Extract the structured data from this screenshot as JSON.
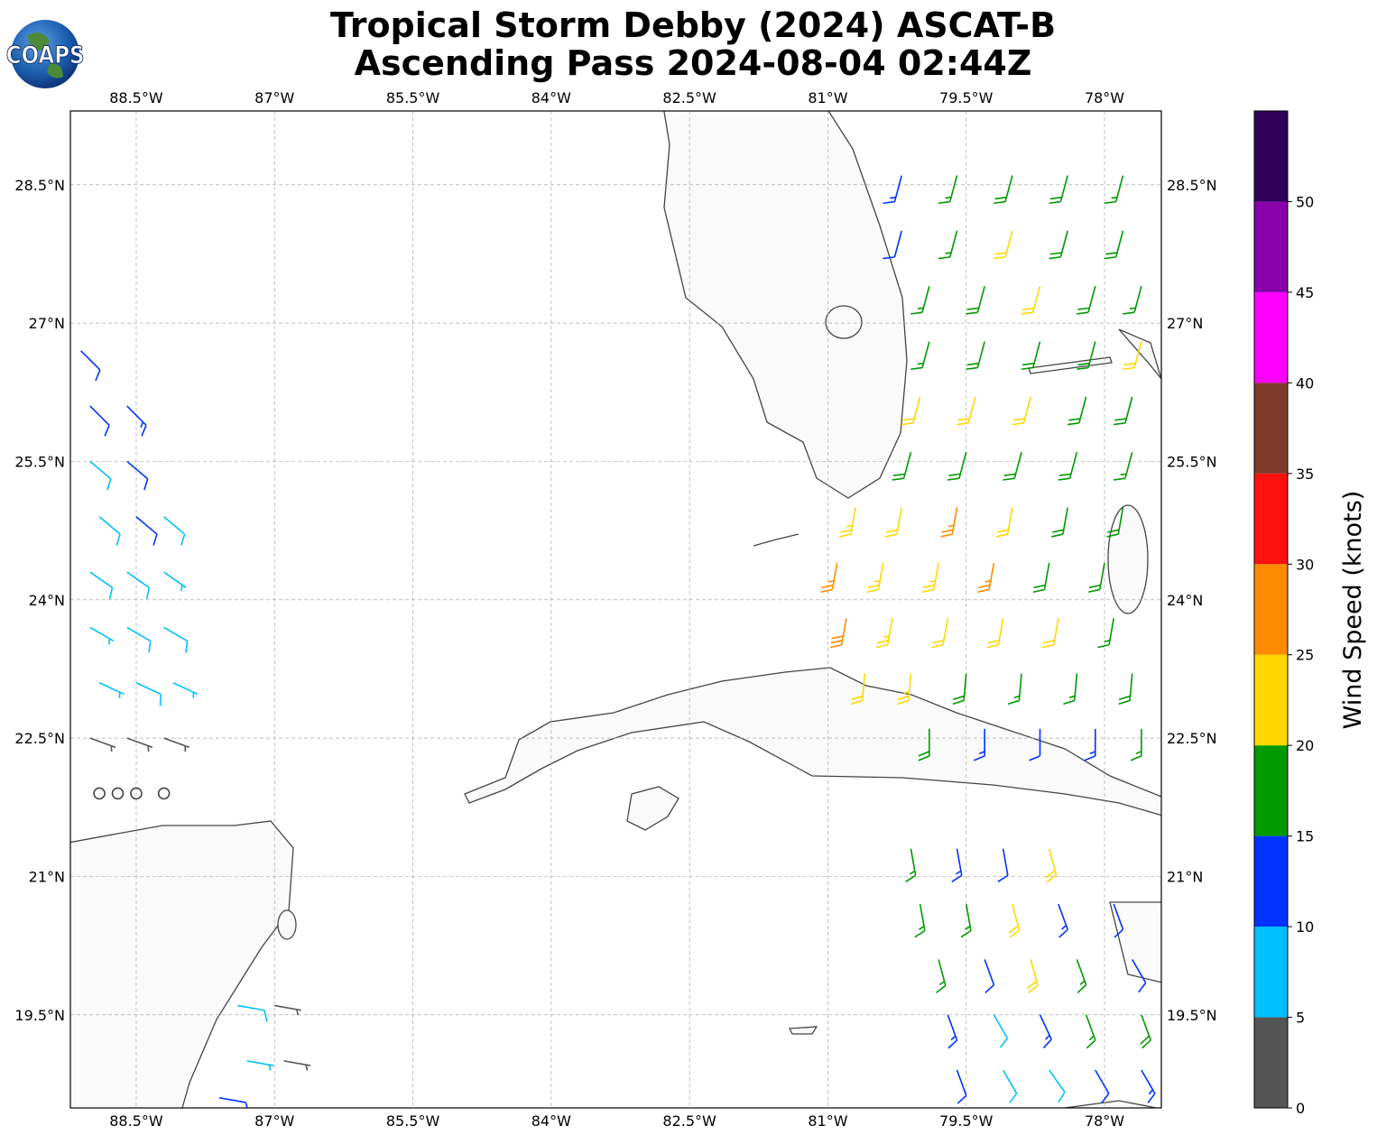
{
  "logo_text": "COAPS",
  "chart_data": {
    "type": "barbs",
    "title": "Tropical Storm Debby (2024) ASCAT-B",
    "subtitle": "Ascending Pass 2024-08-04 02:44Z",
    "xlim": [
      -89.214,
      -77.384
    ],
    "ylim": [
      18.49,
      29.3
    ],
    "xticks": [
      {
        "value": -88.5,
        "label": "88.5°W"
      },
      {
        "value": -87,
        "label": "87°W"
      },
      {
        "value": -85.5,
        "label": "85.5°W"
      },
      {
        "value": -84,
        "label": "84°W"
      },
      {
        "value": -82.5,
        "label": "82.5°W"
      },
      {
        "value": -81,
        "label": "81°W"
      },
      {
        "value": -79.5,
        "label": "79.5°W"
      },
      {
        "value": -78,
        "label": "78°W"
      }
    ],
    "yticks": [
      {
        "value": 19.5,
        "label": "19.5°N"
      },
      {
        "value": 21,
        "label": "21°N"
      },
      {
        "value": 22.5,
        "label": "22.5°N"
      },
      {
        "value": 24,
        "label": "24°N"
      },
      {
        "value": 25.5,
        "label": "25.5°N"
      },
      {
        "value": 27,
        "label": "27°N"
      },
      {
        "value": 28.5,
        "label": "28.5°N"
      }
    ],
    "grid": true,
    "colorbar": {
      "label": "Wind Speed (knots)",
      "lim": [
        0,
        55
      ],
      "ticks": [
        0,
        5,
        10,
        15,
        20,
        25,
        30,
        35,
        40,
        45,
        50
      ],
      "colors": [
        "#555555",
        "#00bfff",
        "#0033ff",
        "#009900",
        "#ffd700",
        "#ff8c00",
        "#ff1010",
        "#7f3b2a",
        "#ff00ff",
        "#8800aa",
        "#2e0057"
      ]
    },
    "barbs": [
      [
        -80.2,
        28.6,
        13,
        195
      ],
      [
        -79.6,
        28.6,
        17,
        195
      ],
      [
        -79.0,
        28.6,
        18,
        195
      ],
      [
        -78.4,
        28.6,
        19,
        195
      ],
      [
        -77.8,
        28.6,
        17,
        195
      ],
      [
        -80.2,
        28.0,
        12,
        195
      ],
      [
        -79.6,
        28.0,
        16,
        195
      ],
      [
        -79.0,
        28.0,
        22,
        195
      ],
      [
        -78.4,
        28.0,
        18,
        195
      ],
      [
        -77.8,
        28.0,
        18,
        195
      ],
      [
        -79.9,
        27.4,
        16,
        195
      ],
      [
        -79.3,
        27.4,
        18,
        195
      ],
      [
        -78.7,
        27.4,
        22,
        195
      ],
      [
        -78.1,
        27.4,
        19,
        195
      ],
      [
        -77.6,
        27.4,
        17,
        195
      ],
      [
        -79.9,
        26.8,
        17,
        195
      ],
      [
        -79.3,
        26.8,
        18,
        195
      ],
      [
        -78.7,
        26.8,
        19,
        195
      ],
      [
        -78.1,
        26.8,
        18,
        195
      ],
      [
        -77.6,
        26.8,
        22,
        195
      ],
      [
        -80.0,
        26.2,
        22,
        195
      ],
      [
        -79.4,
        26.2,
        22,
        195
      ],
      [
        -78.8,
        26.2,
        21,
        195
      ],
      [
        -78.2,
        26.2,
        18,
        195
      ],
      [
        -77.7,
        26.2,
        19,
        195
      ],
      [
        -80.1,
        25.6,
        18,
        195
      ],
      [
        -79.5,
        25.6,
        19,
        195
      ],
      [
        -78.9,
        25.6,
        18,
        195
      ],
      [
        -78.3,
        25.6,
        19,
        195
      ],
      [
        -77.7,
        25.6,
        17,
        195
      ],
      [
        -80.7,
        25.0,
        24,
        190
      ],
      [
        -80.2,
        25.0,
        22,
        190
      ],
      [
        -79.6,
        25.0,
        26,
        190
      ],
      [
        -79.0,
        25.0,
        22,
        190
      ],
      [
        -78.4,
        25.0,
        18,
        190
      ],
      [
        -77.8,
        25.0,
        18,
        190
      ],
      [
        -80.9,
        24.4,
        27,
        190
      ],
      [
        -80.4,
        24.4,
        24,
        190
      ],
      [
        -79.8,
        24.4,
        23,
        190
      ],
      [
        -79.2,
        24.4,
        26,
        190
      ],
      [
        -78.6,
        24.4,
        19,
        190
      ],
      [
        -78.0,
        24.4,
        18,
        190
      ],
      [
        -80.8,
        23.8,
        28,
        190
      ],
      [
        -80.3,
        23.8,
        23,
        190
      ],
      [
        -79.7,
        23.8,
        22,
        190
      ],
      [
        -79.1,
        23.8,
        22,
        190
      ],
      [
        -78.5,
        23.8,
        22,
        190
      ],
      [
        -77.9,
        23.8,
        17,
        190
      ],
      [
        -80.6,
        23.2,
        22,
        185
      ],
      [
        -80.1,
        23.2,
        23,
        185
      ],
      [
        -79.5,
        23.2,
        18,
        185
      ],
      [
        -78.9,
        23.2,
        15,
        185
      ],
      [
        -78.3,
        23.2,
        17,
        185
      ],
      [
        -77.7,
        23.2,
        18,
        185
      ],
      [
        -79.9,
        22.6,
        18,
        180
      ],
      [
        -79.3,
        22.6,
        13,
        180
      ],
      [
        -78.7,
        22.6,
        12,
        180
      ],
      [
        -78.1,
        22.6,
        14,
        180
      ],
      [
        -77.6,
        22.6,
        17,
        180
      ],
      [
        -80.1,
        21.3,
        17,
        170
      ],
      [
        -79.6,
        21.3,
        14,
        170
      ],
      [
        -79.1,
        21.3,
        12,
        170
      ],
      [
        -78.6,
        21.3,
        22,
        165
      ],
      [
        -80.0,
        20.7,
        17,
        170
      ],
      [
        -79.5,
        20.7,
        16,
        170
      ],
      [
        -79.0,
        20.7,
        22,
        165
      ],
      [
        -78.5,
        20.7,
        13,
        160
      ],
      [
        -77.9,
        20.7,
        12,
        160
      ],
      [
        -79.8,
        20.1,
        16,
        165
      ],
      [
        -79.3,
        20.1,
        12,
        160
      ],
      [
        -78.8,
        20.1,
        22,
        165
      ],
      [
        -78.3,
        20.1,
        17,
        160
      ],
      [
        -77.7,
        20.1,
        12,
        150
      ],
      [
        -79.7,
        19.5,
        13,
        160
      ],
      [
        -79.2,
        19.5,
        8,
        150
      ],
      [
        -78.7,
        19.5,
        13,
        155
      ],
      [
        -78.2,
        19.5,
        17,
        160
      ],
      [
        -77.6,
        19.5,
        18,
        160
      ],
      [
        -79.6,
        18.9,
        12,
        160
      ],
      [
        -79.1,
        18.9,
        8,
        150
      ],
      [
        -78.6,
        18.9,
        8,
        145
      ],
      [
        -78.1,
        18.9,
        12,
        150
      ],
      [
        -77.6,
        18.9,
        13,
        150
      ],
      [
        -89.1,
        26.7,
        12,
        135
      ],
      [
        -89.0,
        26.1,
        12,
        135
      ],
      [
        -88.6,
        26.1,
        13,
        135
      ],
      [
        -89.0,
        25.5,
        8,
        130
      ],
      [
        -88.6,
        25.5,
        12,
        130
      ],
      [
        -88.9,
        24.9,
        8,
        130
      ],
      [
        -88.5,
        24.9,
        12,
        130
      ],
      [
        -88.2,
        24.9,
        8,
        130
      ],
      [
        -89.0,
        24.3,
        8,
        125
      ],
      [
        -88.6,
        24.3,
        8,
        125
      ],
      [
        -88.2,
        24.3,
        7,
        125
      ],
      [
        -89.0,
        23.7,
        7,
        120
      ],
      [
        -88.6,
        23.7,
        8,
        120
      ],
      [
        -88.2,
        23.7,
        8,
        120
      ],
      [
        -88.9,
        23.1,
        7,
        115
      ],
      [
        -88.5,
        23.1,
        8,
        115
      ],
      [
        -88.1,
        23.1,
        7,
        115
      ],
      [
        -89.0,
        22.5,
        4,
        110
      ],
      [
        -88.6,
        22.5,
        3,
        110
      ],
      [
        -88.2,
        22.5,
        4,
        110
      ],
      [
        -88.9,
        21.9,
        1,
        0
      ],
      [
        -88.7,
        21.9,
        1,
        0
      ],
      [
        -88.5,
        21.9,
        1,
        0
      ],
      [
        -88.2,
        21.9,
        1,
        0
      ],
      [
        -87.4,
        19.6,
        8,
        100
      ],
      [
        -87.0,
        19.6,
        3,
        100
      ],
      [
        -87.3,
        19.0,
        7,
        100
      ],
      [
        -86.9,
        19.0,
        4,
        100
      ],
      [
        -87.6,
        18.6,
        12,
        100
      ]
    ]
  }
}
